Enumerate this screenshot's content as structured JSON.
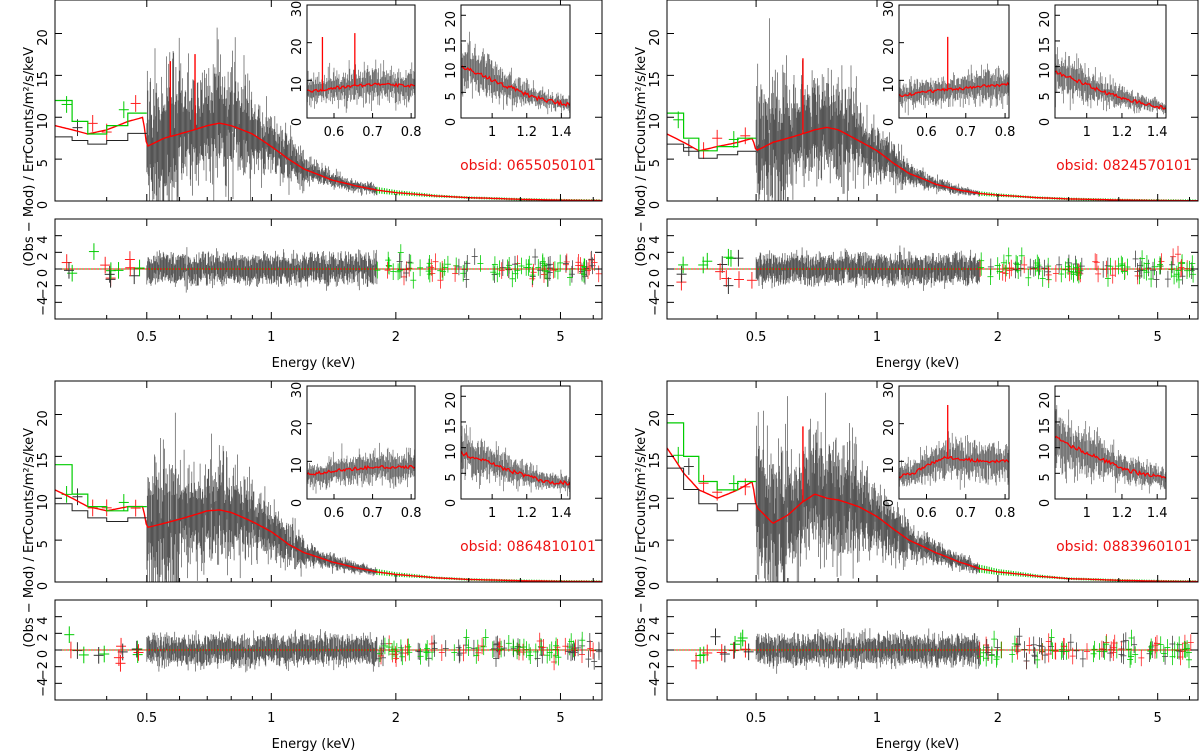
{
  "figure": {
    "ylabel_top": "Counts/m²/s/keV",
    "ylabel_bottom": "(Obs − Mod) / Err",
    "xlabel": "Energy (keV)",
    "colors": {
      "data": "#000000",
      "model": "#ff0000",
      "pn": "#00cc00",
      "mos": "#ff2020",
      "obsid": "#ee1111"
    }
  },
  "chart_data": [
    {
      "type": "line",
      "scale_x": "log",
      "obsid": "obsid: 0655050101",
      "main": {
        "xlim": [
          0.3,
          6.3
        ],
        "ylim": [
          0,
          24
        ],
        "yticks": [
          0,
          5,
          10,
          15,
          20
        ],
        "ytick_labels": [
          "0",
          "5",
          "10",
          "15",
          "20"
        ],
        "model": {
          "x": [
            0.3,
            0.33,
            0.36,
            0.4,
            0.45,
            0.49,
            0.5,
            0.55,
            0.6,
            0.65,
            0.7,
            0.75,
            0.8,
            0.9,
            1.0,
            1.1,
            1.2,
            1.4,
            1.6,
            1.8,
            2.0,
            2.5,
            3.0,
            4.0,
            5.0,
            6.3
          ],
          "y": [
            9.0,
            8.5,
            8.0,
            8.5,
            9.5,
            10.0,
            6.5,
            7.5,
            8.0,
            8.5,
            9.0,
            9.3,
            9.0,
            8.0,
            6.5,
            5.0,
            3.8,
            2.5,
            1.8,
            1.3,
            1.0,
            0.6,
            0.4,
            0.2,
            0.1,
            0.05
          ]
        },
        "pn_model": {
          "x": [
            0.3,
            0.33,
            0.36,
            0.4,
            0.45,
            0.5
          ],
          "y": [
            12.0,
            9.5,
            8.0,
            9.0,
            10.5,
            12.0
          ]
        },
        "spikes": [
          0.57,
          0.654
        ]
      },
      "resid": {
        "ylim": [
          -6,
          6
        ],
        "yticks": [
          -4,
          -2,
          0,
          2,
          4
        ],
        "ytick_labels": [
          "−4",
          "−2",
          "0",
          "2",
          "4"
        ]
      },
      "xticks": [
        0.5,
        1,
        2,
        5
      ],
      "xtick_labels": [
        "0.5",
        "1",
        "2",
        "5"
      ],
      "inset1": {
        "xlim": [
          0.53,
          0.81
        ],
        "ylim": [
          0,
          30
        ],
        "xticks": [
          0.6,
          0.7,
          0.8
        ],
        "xtick_labels": [
          "0.6",
          "0.7",
          "0.8"
        ],
        "yticks": [
          0,
          10,
          20,
          30
        ],
        "ytick_labels": [
          "0",
          "10",
          "20",
          "30"
        ],
        "model": {
          "x": [
            0.53,
            0.57,
            0.6,
            0.65,
            0.7,
            0.75,
            0.81
          ],
          "y": [
            7.0,
            7.5,
            8.0,
            8.5,
            9.0,
            8.8,
            8.5
          ]
        },
        "spikes": [
          0.57,
          0.654
        ]
      },
      "inset2": {
        "xlim": [
          0.82,
          1.45
        ],
        "ylim": [
          0,
          22
        ],
        "xticks": [
          1.0,
          1.2,
          1.4
        ],
        "xtick_labels": [
          "1",
          "1.2",
          "1.4"
        ],
        "yticks": [
          0,
          5,
          10,
          15,
          20
        ],
        "ytick_labels": [
          "0",
          "5",
          "10",
          "15",
          "20"
        ],
        "model": {
          "x": [
            0.82,
            0.9,
            1.0,
            1.1,
            1.2,
            1.3,
            1.45
          ],
          "y": [
            10.0,
            9.0,
            7.5,
            6.0,
            4.5,
            3.5,
            2.5
          ]
        }
      }
    },
    {
      "type": "line",
      "scale_x": "log",
      "obsid": "obsid: 0824570101",
      "main": {
        "xlim": [
          0.3,
          6.3
        ],
        "ylim": [
          0,
          24
        ],
        "yticks": [
          0,
          5,
          10,
          15,
          20
        ],
        "ytick_labels": [
          "0",
          "5",
          "10",
          "15",
          "20"
        ],
        "model": {
          "x": [
            0.3,
            0.33,
            0.36,
            0.4,
            0.45,
            0.49,
            0.5,
            0.55,
            0.6,
            0.65,
            0.7,
            0.75,
            0.8,
            0.9,
            1.0,
            1.1,
            1.2,
            1.4,
            1.6,
            1.8,
            2.0,
            2.5,
            3.0,
            4.0,
            5.0,
            6.3
          ],
          "y": [
            8.0,
            7.0,
            6.0,
            6.5,
            7.0,
            7.5,
            6.0,
            7.0,
            7.5,
            8.0,
            8.5,
            8.8,
            8.5,
            7.2,
            6.0,
            4.5,
            3.3,
            2.0,
            1.3,
            0.9,
            0.7,
            0.4,
            0.25,
            0.12,
            0.06,
            0.03
          ]
        },
        "pn_model": {
          "x": [
            0.3,
            0.33,
            0.36,
            0.4,
            0.45,
            0.5
          ],
          "y": [
            10.5,
            7.5,
            6.0,
            6.5,
            7.5,
            8.0
          ]
        },
        "spikes": [
          0.654
        ]
      },
      "resid": {
        "ylim": [
          -6,
          6
        ],
        "yticks": [
          -4,
          -2,
          0,
          2,
          4
        ],
        "ytick_labels": [
          "−4",
          "−2",
          "0",
          "2",
          "4"
        ]
      },
      "xticks": [
        0.5,
        1,
        2,
        5
      ],
      "xtick_labels": [
        "0.5",
        "1",
        "2",
        "5"
      ],
      "inset1": {
        "xlim": [
          0.53,
          0.81
        ],
        "ylim": [
          0,
          30
        ],
        "xticks": [
          0.6,
          0.7,
          0.8
        ],
        "xtick_labels": [
          "0.6",
          "0.7",
          "0.8"
        ],
        "yticks": [
          0,
          10,
          20,
          30
        ],
        "ytick_labels": [
          "0",
          "10",
          "20",
          "30"
        ],
        "model": {
          "x": [
            0.53,
            0.57,
            0.6,
            0.65,
            0.7,
            0.75,
            0.81
          ],
          "y": [
            6.0,
            6.5,
            7.0,
            7.5,
            8.0,
            8.5,
            9.0
          ]
        },
        "spikes": [
          0.654
        ]
      },
      "inset2": {
        "xlim": [
          0.82,
          1.45
        ],
        "ylim": [
          0,
          22
        ],
        "xticks": [
          1.0,
          1.2,
          1.4
        ],
        "xtick_labels": [
          "1",
          "1.2",
          "1.4"
        ],
        "yticks": [
          0,
          5,
          10,
          15,
          20
        ],
        "ytick_labels": [
          "0",
          "5",
          "10",
          "15",
          "20"
        ],
        "model": {
          "x": [
            0.82,
            0.9,
            1.0,
            1.1,
            1.2,
            1.3,
            1.45
          ],
          "y": [
            9.0,
            8.0,
            6.5,
            5.0,
            4.0,
            3.0,
            2.0
          ]
        }
      }
    },
    {
      "type": "line",
      "scale_x": "log",
      "obsid": "obsid: 0864810101",
      "main": {
        "xlim": [
          0.3,
          6.3
        ],
        "ylim": [
          0,
          24
        ],
        "yticks": [
          0,
          5,
          10,
          15,
          20
        ],
        "ytick_labels": [
          "0",
          "5",
          "10",
          "15",
          "20"
        ],
        "model": {
          "x": [
            0.3,
            0.33,
            0.36,
            0.4,
            0.45,
            0.49,
            0.5,
            0.55,
            0.6,
            0.65,
            0.7,
            0.75,
            0.8,
            0.9,
            1.0,
            1.1,
            1.2,
            1.4,
            1.6,
            1.8,
            2.0,
            2.5,
            3.0,
            4.0,
            5.0,
            6.3
          ],
          "y": [
            11.0,
            10.0,
            9.0,
            8.5,
            9.0,
            9.0,
            6.5,
            7.0,
            7.5,
            8.0,
            8.5,
            8.6,
            8.3,
            7.2,
            6.0,
            4.5,
            3.5,
            2.4,
            1.7,
            1.2,
            0.9,
            0.5,
            0.3,
            0.15,
            0.08,
            0.04
          ]
        },
        "pn_model": {
          "x": [
            0.3,
            0.33,
            0.36,
            0.4,
            0.45,
            0.5
          ],
          "y": [
            14.0,
            10.5,
            9.0,
            8.5,
            9.0,
            9.5
          ]
        },
        "spikes": []
      },
      "resid": {
        "ylim": [
          -6,
          6
        ],
        "yticks": [
          -4,
          -2,
          0,
          2,
          4
        ],
        "ytick_labels": [
          "−4",
          "−2",
          "0",
          "2",
          "4"
        ]
      },
      "xticks": [
        0.5,
        1,
        2,
        5
      ],
      "xtick_labels": [
        "0.5",
        "1",
        "2",
        "5"
      ],
      "inset1": {
        "xlim": [
          0.53,
          0.81
        ],
        "ylim": [
          0,
          30
        ],
        "xticks": [
          0.6,
          0.7,
          0.8
        ],
        "xtick_labels": [
          "0.6",
          "0.7",
          "0.8"
        ],
        "yticks": [
          0,
          10,
          20,
          30
        ],
        "ytick_labels": [
          "0",
          "10",
          "20",
          "30"
        ],
        "model": {
          "x": [
            0.53,
            0.57,
            0.6,
            0.65,
            0.7,
            0.75,
            0.81
          ],
          "y": [
            6.5,
            7.0,
            7.5,
            8.0,
            8.5,
            8.5,
            8.5
          ]
        },
        "spikes": []
      },
      "inset2": {
        "xlim": [
          0.82,
          1.45
        ],
        "ylim": [
          0,
          22
        ],
        "xticks": [
          1.0,
          1.2,
          1.4
        ],
        "xtick_labels": [
          "1",
          "1.2",
          "1.4"
        ],
        "yticks": [
          0,
          5,
          10,
          15,
          20
        ],
        "ytick_labels": [
          "0",
          "5",
          "10",
          "15",
          "20"
        ],
        "model": {
          "x": [
            0.82,
            0.9,
            1.0,
            1.1,
            1.2,
            1.3,
            1.45
          ],
          "y": [
            9.0,
            8.0,
            7.0,
            5.5,
            4.5,
            3.5,
            3.0
          ]
        }
      }
    },
    {
      "type": "line",
      "scale_x": "log",
      "obsid": "obsid: 0883960101",
      "main": {
        "xlim": [
          0.3,
          6.3
        ],
        "ylim": [
          0,
          24
        ],
        "yticks": [
          0,
          5,
          10,
          15,
          20
        ],
        "ytick_labels": [
          "0",
          "5",
          "10",
          "15",
          "20"
        ],
        "model": {
          "x": [
            0.3,
            0.33,
            0.36,
            0.4,
            0.45,
            0.49,
            0.5,
            0.55,
            0.6,
            0.65,
            0.7,
            0.75,
            0.8,
            0.9,
            1.0,
            1.1,
            1.2,
            1.4,
            1.6,
            1.8,
            2.0,
            2.5,
            3.0,
            4.0,
            5.0,
            6.3
          ],
          "y": [
            16.0,
            13.0,
            11.0,
            10.0,
            11.0,
            12.0,
            9.0,
            7.0,
            8.0,
            9.5,
            10.5,
            10.0,
            9.8,
            9.0,
            7.8,
            6.3,
            5.0,
            3.5,
            2.4,
            1.6,
            1.2,
            0.7,
            0.4,
            0.2,
            0.1,
            0.05
          ]
        },
        "pn_model": {
          "x": [
            0.3,
            0.33,
            0.36,
            0.4,
            0.45,
            0.5
          ],
          "y": [
            19.0,
            15.0,
            12.0,
            11.0,
            12.0,
            12.5
          ]
        },
        "spikes": [
          0.654
        ]
      },
      "resid": {
        "ylim": [
          -6,
          6
        ],
        "yticks": [
          -4,
          -2,
          0,
          2,
          4
        ],
        "ytick_labels": [
          "−4",
          "−2",
          "0",
          "2",
          "4"
        ]
      },
      "xticks": [
        0.5,
        1,
        2,
        5
      ],
      "xtick_labels": [
        "0.5",
        "1",
        "2",
        "5"
      ],
      "inset1": {
        "xlim": [
          0.53,
          0.81
        ],
        "ylim": [
          0,
          30
        ],
        "xticks": [
          0.6,
          0.7,
          0.8
        ],
        "xtick_labels": [
          "0.6",
          "0.7",
          "0.8"
        ],
        "yticks": [
          0,
          10,
          20,
          30
        ],
        "ytick_labels": [
          "0",
          "10",
          "20",
          "30"
        ],
        "model": {
          "x": [
            0.53,
            0.57,
            0.6,
            0.65,
            0.7,
            0.75,
            0.81
          ],
          "y": [
            6.0,
            7.0,
            9.0,
            11.0,
            10.5,
            10.0,
            10.0
          ]
        },
        "spikes": [
          0.654
        ]
      },
      "inset2": {
        "xlim": [
          0.82,
          1.45
        ],
        "ylim": [
          0,
          22
        ],
        "xticks": [
          1.0,
          1.2,
          1.4
        ],
        "xtick_labels": [
          "1",
          "1.2",
          "1.4"
        ],
        "yticks": [
          0,
          5,
          10,
          15,
          20
        ],
        "ytick_labels": [
          "0",
          "5",
          "10",
          "15",
          "20"
        ],
        "model": {
          "x": [
            0.82,
            0.9,
            1.0,
            1.1,
            1.2,
            1.3,
            1.45
          ],
          "y": [
            12.0,
            10.5,
            9.0,
            7.5,
            6.0,
            5.0,
            4.0
          ]
        }
      }
    }
  ]
}
